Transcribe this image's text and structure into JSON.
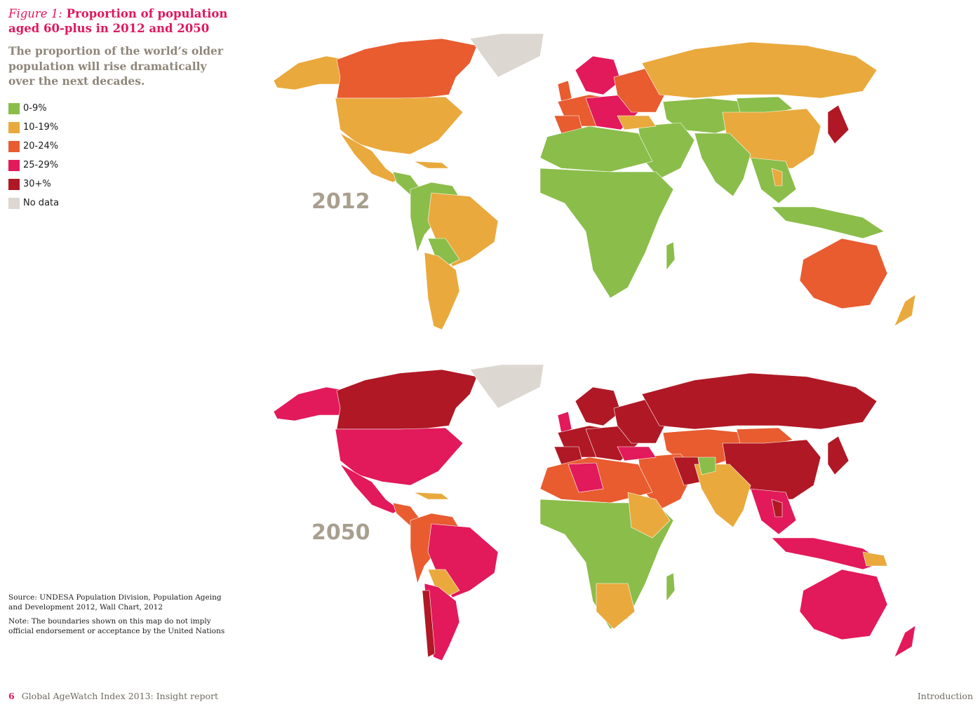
{
  "figure": {
    "label": "Figure 1:",
    "title": "Proportion of population aged 60-plus in 2012 and 2050",
    "subtitle": "The proportion of the world’s older population will rise dramatically over the next decades."
  },
  "legend": [
    {
      "label": "0-9%",
      "color": "#8bbd4a"
    },
    {
      "label": "10-19%",
      "color": "#e9a93c"
    },
    {
      "label": "20-24%",
      "color": "#e85c30"
    },
    {
      "label": "25-29%",
      "color": "#e2195a"
    },
    {
      "label": "30+%",
      "color": "#b01825"
    },
    {
      "label": "No data",
      "color": "#dcd8d1"
    }
  ],
  "maps": {
    "year_2012": "2012",
    "year_2050": "2050"
  },
  "source": "Source: UNDESA Population Division, Population Ageing and Development 2012, Wall Chart, 2012",
  "note": "Note: The boundaries shown on this map do not imply official endorsement or acceptance by the United Nations",
  "footer": {
    "page_number": "6",
    "publication": "Global AgeWatch Index 2013: Insight report",
    "section": "Introduction"
  }
}
